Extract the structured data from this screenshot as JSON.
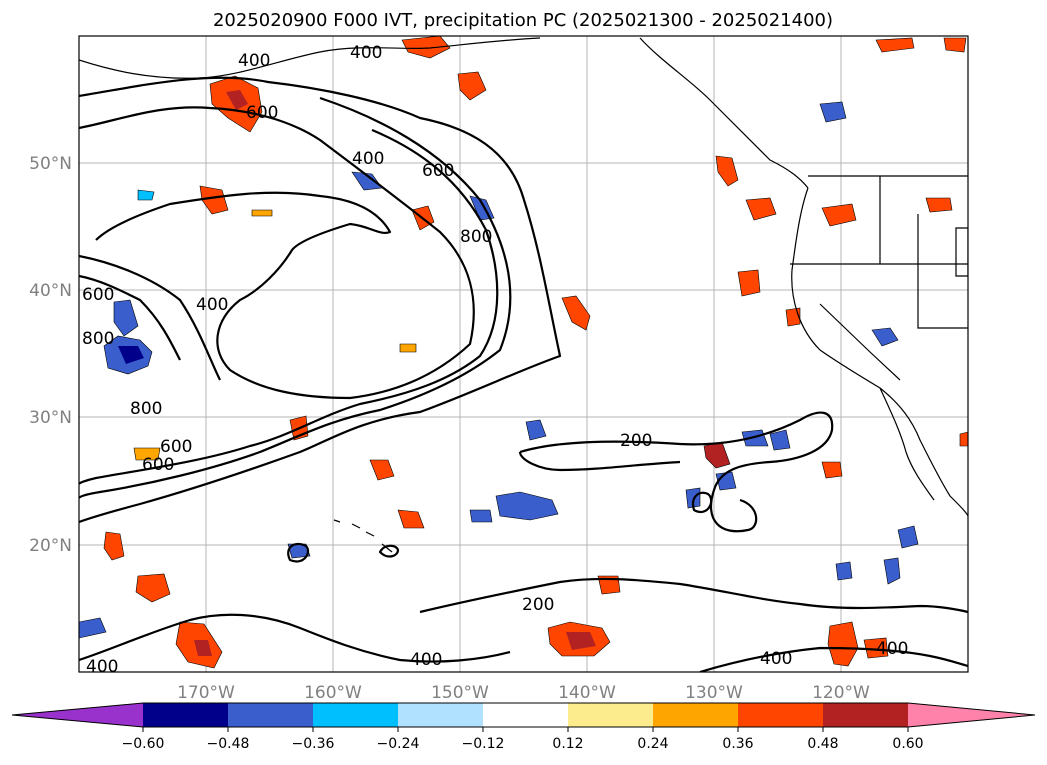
{
  "title": "2025020900 F000 IVT, precipitation PC (2025021300 - 2025021400)",
  "map": {
    "lon_ticks": [
      "170°W",
      "160°W",
      "150°W",
      "140°W",
      "130°W",
      "120°W"
    ],
    "lat_ticks": [
      "50°N",
      "40°N",
      "30°N",
      "20°N"
    ],
    "grid": true,
    "contour_labels": [
      "400",
      "400",
      "600",
      "400",
      "600",
      "800",
      "800",
      "600",
      "400",
      "800",
      "600",
      "600",
      "200",
      "200",
      "400",
      "400",
      "400",
      "400"
    ]
  },
  "colorbar": {
    "ticks": [
      "−0.60",
      "−0.48",
      "−0.36",
      "−0.24",
      "−0.12",
      "0.12",
      "0.24",
      "0.36",
      "0.48",
      "0.60"
    ],
    "colors": [
      "#9932cc",
      "#00008b",
      "#3a5fcd",
      "#00bfff",
      "#b0e2ff",
      "#ffffff",
      "#fdec8e",
      "#ffa500",
      "#ff4500",
      "#b22222",
      "#ff82ab"
    ]
  },
  "colors": {
    "positive_core": "#b22222",
    "positive_mid": "#ff4500",
    "positive_edge": "#ffa500",
    "negative_core": "#00008b",
    "negative_mid": "#3a5fcd",
    "negative_edge": "#00bfff"
  }
}
